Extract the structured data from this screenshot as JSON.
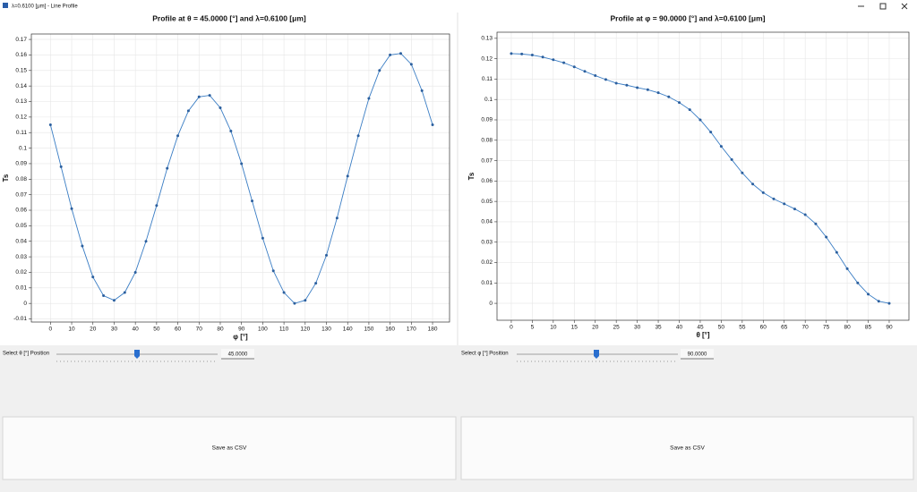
{
  "window": {
    "title": "λ=0.6100 [μm] - Line Profile"
  },
  "chart_data": [
    {
      "type": "line",
      "title": "Profile at θ  = 45.0000 [°] and λ=0.6100 [μm]",
      "x_label": "φ [°]",
      "y_label": "Ts",
      "x": [
        0,
        5,
        10,
        15,
        20,
        25,
        30,
        35,
        40,
        45,
        50,
        55,
        60,
        65,
        70,
        75,
        80,
        85,
        90,
        95,
        100,
        105,
        110,
        115,
        120,
        125,
        130,
        135,
        140,
        145,
        150,
        155,
        160,
        165,
        170,
        175,
        180
      ],
      "values": [
        0.115,
        0.088,
        0.061,
        0.037,
        0.017,
        0.005,
        0.002,
        0.007,
        0.02,
        0.04,
        0.063,
        0.087,
        0.108,
        0.124,
        0.133,
        0.134,
        0.126,
        0.111,
        0.09,
        0.066,
        0.042,
        0.021,
        0.007,
        0.0,
        0.002,
        0.013,
        0.031,
        0.055,
        0.082,
        0.108,
        0.132,
        0.15,
        0.16,
        0.161,
        0.154,
        0.137,
        0.115
      ],
      "color": "#3a7dc4",
      "grid": true,
      "xlim": [
        -9,
        188
      ],
      "xticks": [
        0,
        10,
        20,
        30,
        40,
        50,
        60,
        70,
        80,
        90,
        100,
        110,
        120,
        130,
        140,
        150,
        160,
        170,
        180
      ],
      "ylim": [
        -0.012,
        0.1735
      ],
      "yticks": [
        -0.01,
        0,
        0.01,
        0.02,
        0.03,
        0.04,
        0.05,
        0.06,
        0.07,
        0.08,
        0.09,
        0.1,
        0.11,
        0.12,
        0.13,
        0.14,
        0.15,
        0.16,
        0.17
      ]
    },
    {
      "type": "line",
      "title": "Profile at φ  = 90.0000 [°] and λ=0.6100 [μm]",
      "x_label": "θ [°]",
      "y_label": "Ts",
      "x": [
        0,
        2.5,
        5,
        7.5,
        10,
        12.5,
        15,
        17.5,
        20,
        22.5,
        25,
        27.5,
        30,
        32.5,
        35,
        37.5,
        40,
        42.5,
        45,
        47.5,
        50,
        52.5,
        55,
        57.5,
        60,
        62.5,
        65,
        67.5,
        70,
        72.5,
        75,
        77.5,
        80,
        82.5,
        85,
        87.5,
        90
      ],
      "values": [
        0.1225,
        0.1223,
        0.1218,
        0.1208,
        0.1195,
        0.118,
        0.116,
        0.1138,
        0.1117,
        0.1098,
        0.108,
        0.107,
        0.1058,
        0.1048,
        0.1033,
        0.1013,
        0.0985,
        0.095,
        0.09,
        0.084,
        0.077,
        0.0705,
        0.064,
        0.0585,
        0.0543,
        0.0512,
        0.0488,
        0.0463,
        0.0435,
        0.039,
        0.0325,
        0.025,
        0.017,
        0.01,
        0.0045,
        0.001,
        0.0
      ],
      "color": "#3a7dc4",
      "grid": true,
      "xlim": [
        -3.4,
        94.7
      ],
      "xticks": [
        0,
        5,
        10,
        15,
        20,
        25,
        30,
        35,
        40,
        45,
        50,
        55,
        60,
        65,
        70,
        75,
        80,
        85,
        90
      ],
      "ylim": [
        -0.0083,
        0.133
      ],
      "yticks": [
        0,
        0.01,
        0.02,
        0.03,
        0.04,
        0.05,
        0.06,
        0.07,
        0.08,
        0.09,
        0.1,
        0.11,
        0.12,
        0.13
      ]
    }
  ],
  "controls": [
    {
      "label": "Select θ [°] Position",
      "value": "45.0000",
      "button": "Save as CSV"
    },
    {
      "label": "Select φ [°] Position",
      "value": "90.0000",
      "button": "Save as CSV"
    }
  ]
}
